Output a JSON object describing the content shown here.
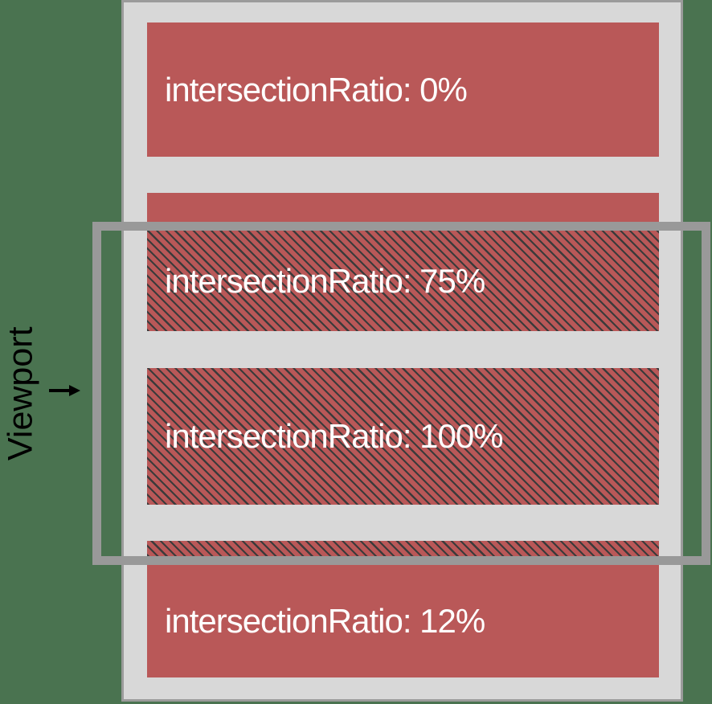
{
  "diagram": {
    "description": "IntersectionObserver viewport intersection diagram",
    "viewport": {
      "label": "Viewport"
    },
    "boxes": [
      {
        "label": "intersectionRatio: 0%",
        "ratio": "0%",
        "hatched": false
      },
      {
        "label": "intersectionRatio: 75%",
        "ratio": "75%",
        "hatched": true
      },
      {
        "label": "intersectionRatio: 100%",
        "ratio": "100%",
        "hatched": true
      },
      {
        "label": "intersectionRatio: 12%",
        "ratio": "12%",
        "hatched": true
      }
    ]
  },
  "colors": {
    "bg-green": "#4a7350",
    "box-red": "#b95858",
    "container-gray": "#d8d8d8",
    "border-gray": "#9b9b9b",
    "viewport-border": "#999999",
    "hatch-line": "#3b3b3b",
    "box-text": "#ffffff",
    "label-text": "#000000"
  }
}
